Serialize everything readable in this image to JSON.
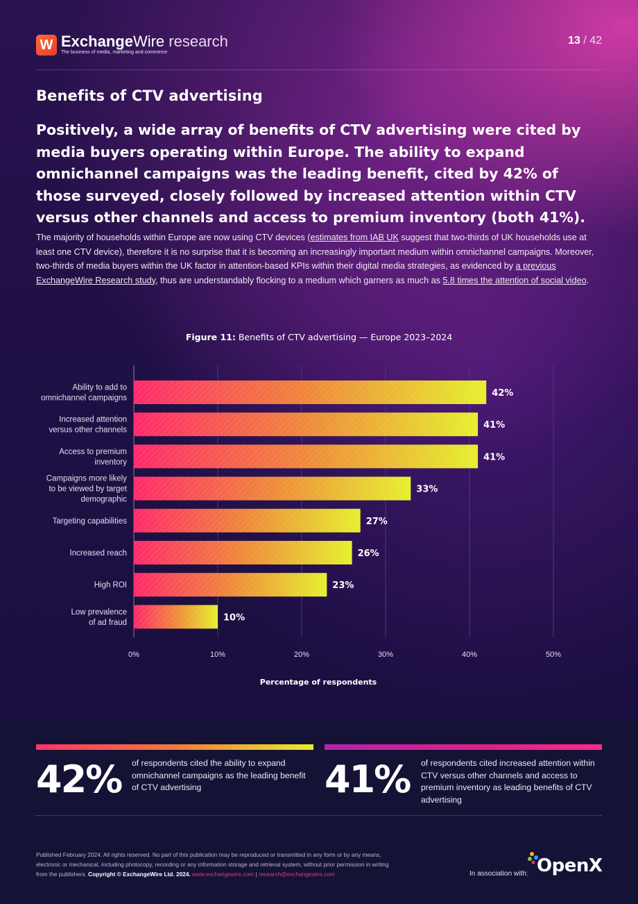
{
  "header": {
    "logo_mark": "W",
    "brand_bold": "Exchange",
    "brand_light": "Wire",
    "brand_suffix": " research",
    "tagline": "The business of media, marketing and commerce",
    "page_current": "13",
    "page_sep": " / ",
    "page_total": "42"
  },
  "section_title": "Benefits of CTV advertising",
  "lead": "Positively, a wide array of benefits of CTV advertising were cited by media buyers operating within Europe. The ability to expand omnichannel campaigns was the leading benefit, cited by 42% of those surveyed, closely followed by increased attention within CTV versus other channels and access to premium inventory (both 41%).",
  "body": {
    "p1": "The majority of households within Europe are now using CTV devices (",
    "link1": "estimates from IAB UK",
    "p2": " suggest that two-thirds of UK households use at least one CTV device), therefore it is no surprise that it is becoming an increasingly important medium within omnichannel campaigns. Moreover, two-thirds of media buyers within the UK factor in attention-based KPIs within their digital media strategies, as evidenced by ",
    "link2": "a previous ExchangeWire Research study",
    "p3": ", thus are understandably flocking to a medium which garners as much as ",
    "link3": "5.8 times the attention of social video",
    "p4": "."
  },
  "figure": {
    "label": "Figure 11:",
    "title": " Benefits of CTV advertising — Europe 2023–2024"
  },
  "chart_data": {
    "type": "bar",
    "orientation": "horizontal",
    "categories": [
      [
        "Ability to add to",
        "omnichannel campaigns"
      ],
      [
        "Increased attention",
        "versus other channels"
      ],
      [
        "Access to premium",
        "inventory"
      ],
      [
        "Campaigns more likely",
        "to be viewed by target",
        "demographic"
      ],
      [
        "Targeting capabilities"
      ],
      [
        "Increased reach"
      ],
      [
        "High ROI"
      ],
      [
        "Low prevalence",
        "of ad fraud"
      ]
    ],
    "values": [
      42,
      41,
      41,
      33,
      27,
      26,
      23,
      10
    ],
    "value_labels": [
      "42%",
      "41%",
      "41%",
      "33%",
      "27%",
      "26%",
      "23%",
      "10%"
    ],
    "xticks": [
      "0%",
      "10%",
      "20%",
      "30%",
      "40%",
      "50%"
    ],
    "xlim": [
      0,
      50
    ],
    "xlabel": "Percentage of respondents",
    "grid": true,
    "colors": {
      "bar_start": "#ff2a6a",
      "bar_mid": "#ef8a3a",
      "bar_end": "#e6f02e",
      "grid": "#4a3a78"
    }
  },
  "stats": [
    {
      "value": "42%",
      "text": "of respondents cited the ability to expand omnichannel campaigns as the leading benefit of CTV advertising"
    },
    {
      "value": "41%",
      "text": "of respondents cited increased attention within CTV versus other channels and access to premium inventory as leading benefits of CTV advertising"
    }
  ],
  "footer": {
    "legal": "Published February 2024. All rights reserved. No part of this publication may be reproduced or transmitted in any form or by any means, electronic or mechanical, including photocopy, recording or any information storage and retrieval system, without prior permission in writing from the publishers. ",
    "copyright": "Copyright © ExchangeWire Ltd. 2024.",
    "site": "www.exchangewire.com",
    "divider": "|",
    "email": "research@exchangewire.com",
    "association": "In association with:",
    "partner": "OpenX",
    "partner_icon": "openx-dots-icon"
  }
}
